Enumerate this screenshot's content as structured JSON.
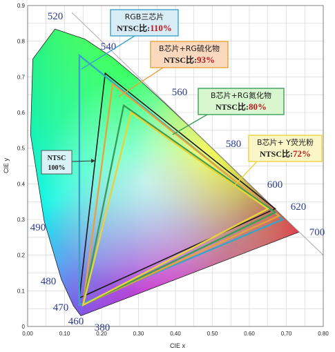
{
  "chart_data": {
    "type": "scatter",
    "xlabel": "CIE  x",
    "ylabel": "CIE  y",
    "xlim": [
      0,
      0.8
    ],
    "ylim": [
      0,
      0.9
    ],
    "x_ticks": [
      "0.00",
      "0.10",
      "0.20",
      "0.30",
      "0.40",
      "0.50",
      "0.60",
      "0.70",
      "0.80"
    ],
    "y_ticks": [
      "0",
      "0.1",
      "0.2",
      "0.3",
      "0.4",
      "0.5",
      "0.6",
      "0.7",
      "0.8",
      "0.9"
    ],
    "grid": true,
    "spectral_locus": [
      {
        "nm": "460",
        "x": 0.144,
        "y": 0.03
      },
      {
        "nm": "470",
        "x": 0.124,
        "y": 0.058
      },
      {
        "nm": "480",
        "x": 0.091,
        "y": 0.133
      },
      {
        "nm": "490",
        "x": 0.045,
        "y": 0.295
      },
      {
        "nm": "500",
        "x": 0.008,
        "y": 0.538
      },
      {
        "nm": "510",
        "x": 0.014,
        "y": 0.75
      },
      {
        "nm": "520",
        "x": 0.074,
        "y": 0.834
      },
      {
        "nm": "530",
        "x": 0.155,
        "y": 0.806
      },
      {
        "nm": "540",
        "x": 0.23,
        "y": 0.754
      },
      {
        "nm": "550",
        "x": 0.302,
        "y": 0.692
      },
      {
        "nm": "560",
        "x": 0.373,
        "y": 0.624
      },
      {
        "nm": "570",
        "x": 0.444,
        "y": 0.555
      },
      {
        "nm": "580",
        "x": 0.512,
        "y": 0.487
      },
      {
        "nm": "590",
        "x": 0.575,
        "y": 0.424
      },
      {
        "nm": "600",
        "x": 0.627,
        "y": 0.372
      },
      {
        "nm": "620",
        "x": 0.691,
        "y": 0.308
      },
      {
        "nm": "700",
        "x": 0.735,
        "y": 0.265
      }
    ],
    "wavelength_labels": [
      "520",
      "540",
      "560",
      "580",
      "600",
      "620",
      "700",
      "490",
      "480",
      "470",
      "460",
      "380"
    ],
    "series": [
      {
        "name": "NTSC",
        "ratio": "100%",
        "color": "#1a1a1a",
        "points": [
          [
            0.67,
            0.33
          ],
          [
            0.21,
            0.71
          ],
          [
            0.14,
            0.08
          ]
        ]
      },
      {
        "name": "RGB三芯片",
        "ratio": "NTSC比:110%",
        "color": "#3aa3c7",
        "points": [
          [
            0.69,
            0.3
          ],
          [
            0.14,
            0.76
          ],
          [
            0.14,
            0.06
          ]
        ]
      },
      {
        "name": "B芯片+RG硫化物",
        "ratio": "NTSC比:93%",
        "color": "#e8a23c",
        "points": [
          [
            0.68,
            0.31
          ],
          [
            0.23,
            0.68
          ],
          [
            0.15,
            0.06
          ]
        ]
      },
      {
        "name": "B芯片+RG氮化物",
        "ratio": "NTSC比:80%",
        "color": "#3a9e57",
        "points": [
          [
            0.67,
            0.32
          ],
          [
            0.26,
            0.62
          ],
          [
            0.15,
            0.06
          ]
        ]
      },
      {
        "name": "B芯片+ Y荧光粉",
        "ratio": "NTSC比:72%",
        "color": "#e8d43a",
        "points": [
          [
            0.65,
            0.33
          ],
          [
            0.28,
            0.6
          ],
          [
            0.15,
            0.06
          ]
        ]
      }
    ]
  }
}
